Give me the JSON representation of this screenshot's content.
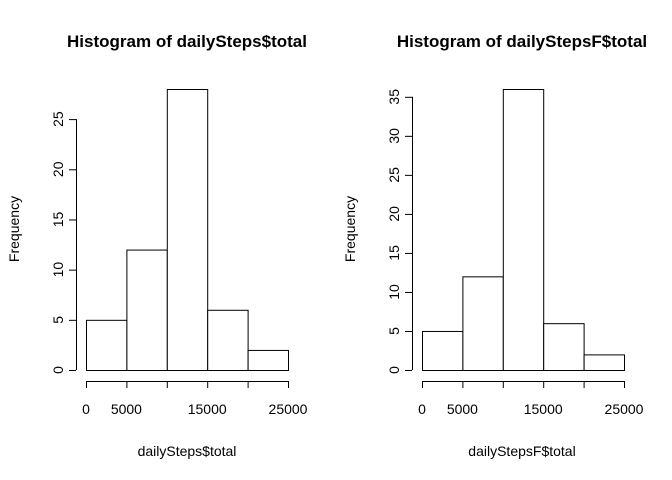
{
  "chart_data": [
    {
      "type": "bar",
      "title": "Histogram of dailySteps$total",
      "xlabel": "dailySteps$total",
      "ylabel": "Frequency",
      "bin_edges": [
        0,
        5000,
        10000,
        15000,
        20000,
        25000
      ],
      "values": [
        5,
        12,
        28,
        6,
        2
      ],
      "xlim": [
        0,
        25000
      ],
      "ylim": [
        0,
        28
      ],
      "x_ticks": [
        0,
        5000,
        15000,
        25000
      ],
      "x_tick_marks": [
        0,
        5000,
        10000,
        15000,
        20000,
        25000
      ],
      "y_ticks": [
        0,
        5,
        10,
        15,
        20,
        25
      ],
      "grid": false
    },
    {
      "type": "bar",
      "title": "Histogram of dailyStepsF$total",
      "xlabel": "dailyStepsF$total",
      "ylabel": "Frequency",
      "bin_edges": [
        0,
        5000,
        10000,
        15000,
        20000,
        25000
      ],
      "values": [
        5,
        12,
        36,
        6,
        2
      ],
      "xlim": [
        0,
        25000
      ],
      "ylim": [
        0,
        36
      ],
      "x_ticks": [
        0,
        5000,
        15000,
        25000
      ],
      "x_tick_marks": [
        0,
        5000,
        10000,
        15000,
        20000,
        25000
      ],
      "y_ticks": [
        0,
        5,
        10,
        15,
        20,
        25,
        30,
        35
      ],
      "grid": false
    }
  ]
}
